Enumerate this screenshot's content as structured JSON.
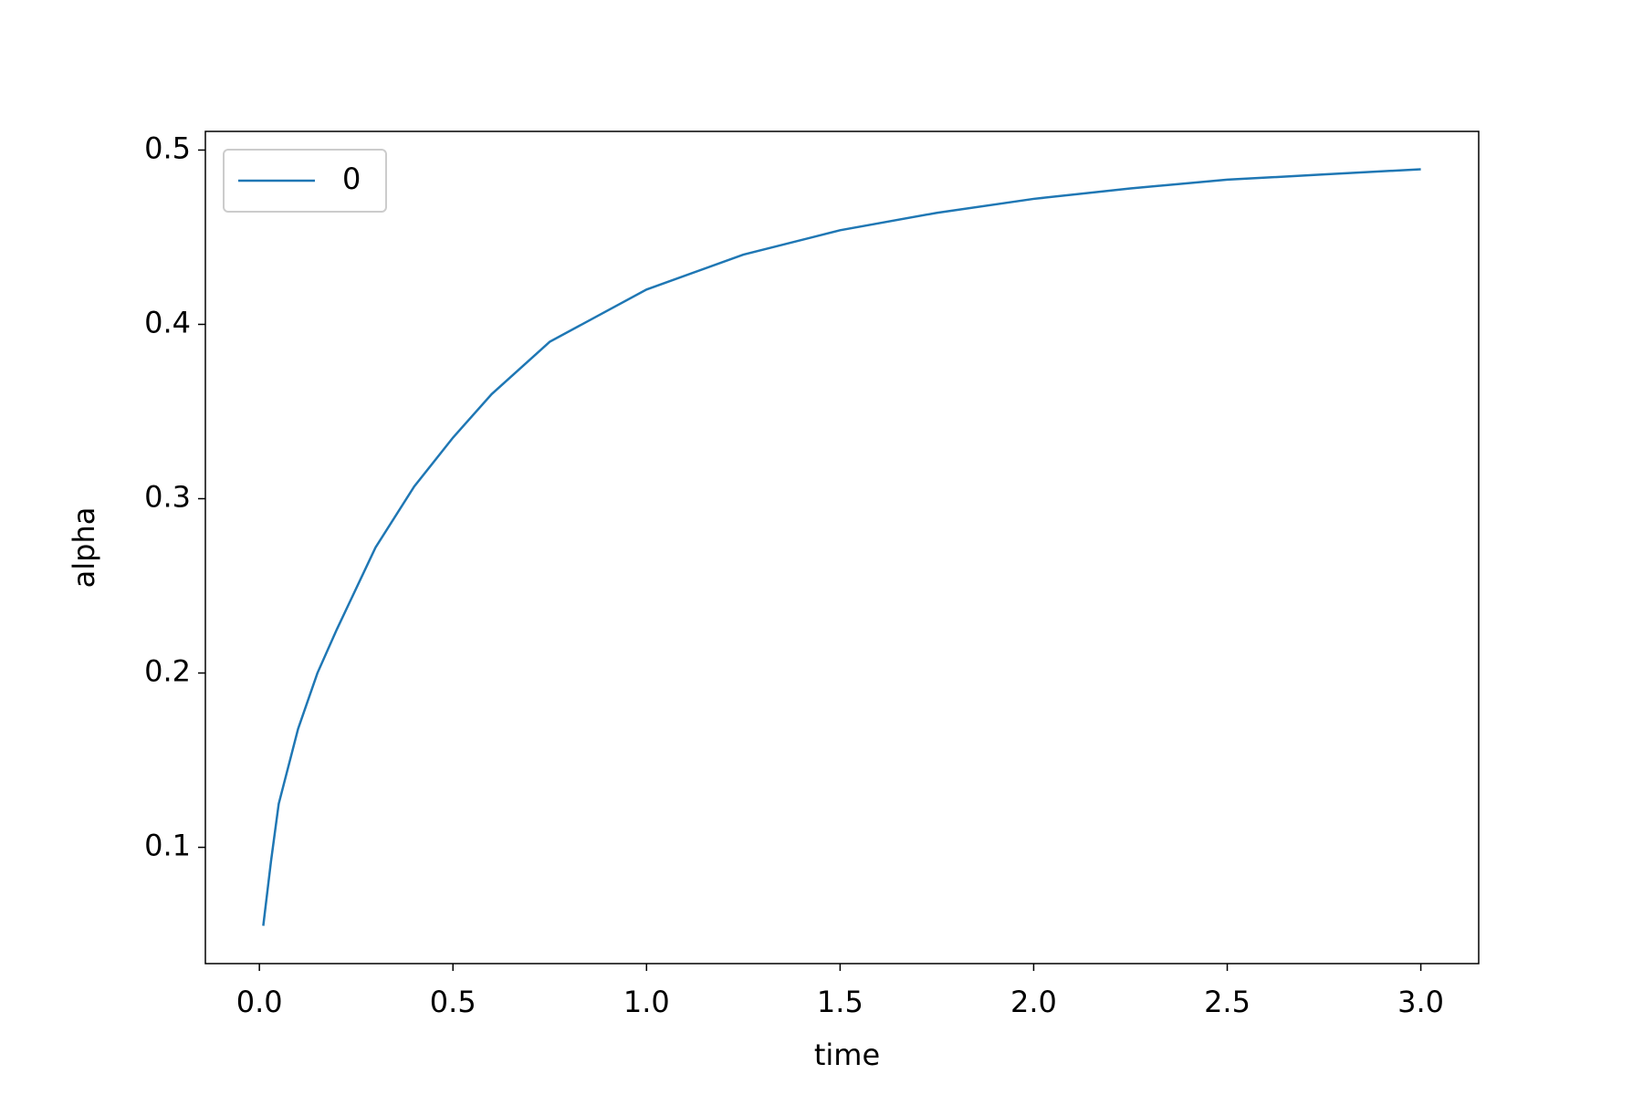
{
  "chart_data": {
    "type": "line",
    "xlabel": "time",
    "ylabel": "alpha",
    "x": [
      0.01,
      0.03,
      0.05,
      0.1,
      0.15,
      0.2,
      0.3,
      0.4,
      0.5,
      0.6,
      0.75,
      1.0,
      1.25,
      1.5,
      1.75,
      2.0,
      2.25,
      2.5,
      2.75,
      3.0
    ],
    "series": [
      {
        "name": "0",
        "color": "#1f77b4",
        "values": [
          0.055,
          0.092,
          0.125,
          0.168,
          0.2,
          0.225,
          0.272,
          0.307,
          0.335,
          0.36,
          0.39,
          0.42,
          0.44,
          0.454,
          0.464,
          0.472,
          0.478,
          0.483,
          0.486,
          0.489
        ]
      }
    ],
    "xlim": [
      -0.1395,
      3.1495
    ],
    "xticks": [
      {
        "value": 0,
        "label": "0.0"
      },
      0.5,
      {
        "value": 1,
        "label": "1.0"
      },
      1.5,
      {
        "value": 2,
        "label": "2.0"
      },
      2.5,
      {
        "value": 3,
        "label": "3.0"
      }
    ],
    "ylim": [
      0.0333,
      0.5107
    ],
    "yticks": [
      0.1,
      0.2,
      0.3,
      0.4,
      0.5
    ],
    "grid": false,
    "legend": "upper-left"
  }
}
